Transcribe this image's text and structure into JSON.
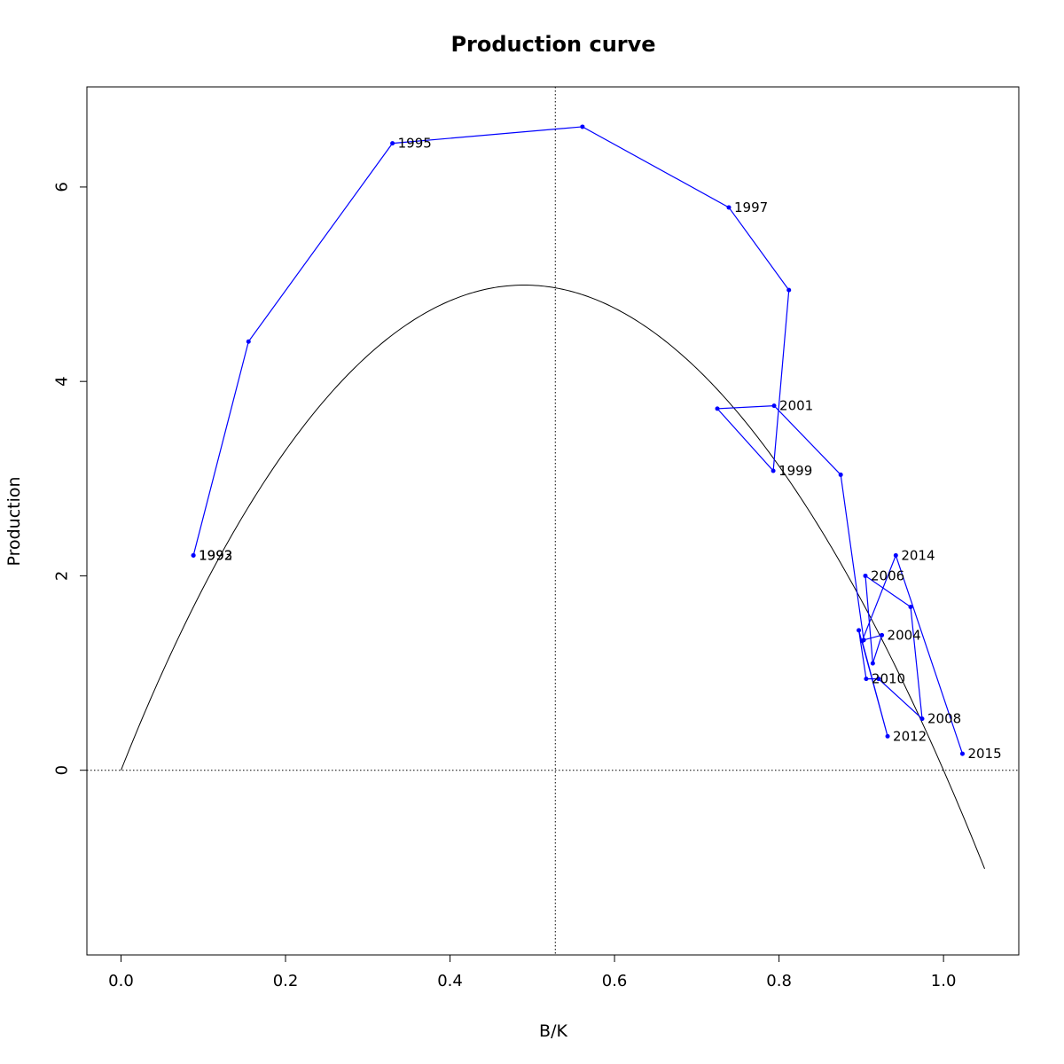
{
  "chart_data": {
    "type": "line",
    "title": "Production curve",
    "xlabel": "B/K",
    "ylabel": "Production",
    "xlim": [
      -0.0415,
      1.0915
    ],
    "ylim": [
      -1.9,
      7.03
    ],
    "x_ticks": [
      0.0,
      0.2,
      0.4,
      0.6,
      0.8,
      1.0
    ],
    "x_tick_labels": [
      "0.0",
      "0.2",
      "0.4",
      "0.6",
      "0.8",
      "1.0"
    ],
    "y_ticks": [
      0,
      2,
      4,
      6
    ],
    "y_tick_labels": [
      "0",
      "2",
      "4",
      "6"
    ],
    "grid": false,
    "reference_lines": {
      "horizontal_y": 0,
      "vertical_x": 0.528,
      "style": "dotted"
    },
    "curve": {
      "description_type": "production function",
      "r": 21.5,
      "k_shape": 0.9,
      "x_start": 0.0,
      "x_end": 1.05,
      "color": "#000000"
    },
    "series": [
      {
        "color": "#0000ff",
        "points": [
          {
            "year": "1992",
            "x": 0.088,
            "y": 2.21,
            "label": "1992"
          },
          {
            "year": "1993",
            "x": 0.088,
            "y": 2.21,
            "label": "1993"
          },
          {
            "year": "1994",
            "x": 0.155,
            "y": 4.41,
            "label": ""
          },
          {
            "year": "1995",
            "x": 0.33,
            "y": 6.45,
            "label": "1995"
          },
          {
            "year": "1996",
            "x": 0.561,
            "y": 6.62,
            "label": ""
          },
          {
            "year": "1997",
            "x": 0.739,
            "y": 5.79,
            "label": "1997"
          },
          {
            "year": "1998",
            "x": 0.812,
            "y": 4.94,
            "label": ""
          },
          {
            "year": "1999",
            "x": 0.793,
            "y": 3.08,
            "label": "1999"
          },
          {
            "year": "2000",
            "x": 0.725,
            "y": 3.72,
            "label": ""
          },
          {
            "year": "2001",
            "x": 0.794,
            "y": 3.75,
            "label": "2001"
          },
          {
            "year": "2002",
            "x": 0.875,
            "y": 3.04,
            "label": ""
          },
          {
            "year": "2003",
            "x": 0.903,
            "y": 1.34,
            "label": ""
          },
          {
            "year": "2004",
            "x": 0.925,
            "y": 1.39,
            "label": "2004"
          },
          {
            "year": "2005",
            "x": 0.914,
            "y": 1.1,
            "label": ""
          },
          {
            "year": "2006",
            "x": 0.905,
            "y": 2.0,
            "label": "2006"
          },
          {
            "year": "2007",
            "x": 0.96,
            "y": 1.68,
            "label": ""
          },
          {
            "year": "2008",
            "x": 0.974,
            "y": 0.53,
            "label": "2008"
          },
          {
            "year": "2009",
            "x": 0.921,
            "y": 0.94,
            "label": ""
          },
          {
            "year": "2010",
            "x": 0.906,
            "y": 0.94,
            "label": "2010"
          },
          {
            "year": "2011",
            "x": 0.897,
            "y": 1.44,
            "label": ""
          },
          {
            "year": "2012",
            "x": 0.932,
            "y": 0.35,
            "label": "2012"
          },
          {
            "year": "2013",
            "x": 0.901,
            "y": 1.33,
            "label": ""
          },
          {
            "year": "2014",
            "x": 0.942,
            "y": 2.21,
            "label": "2014"
          },
          {
            "year": "2015",
            "x": 1.023,
            "y": 0.17,
            "label": "2015"
          }
        ]
      }
    ]
  }
}
